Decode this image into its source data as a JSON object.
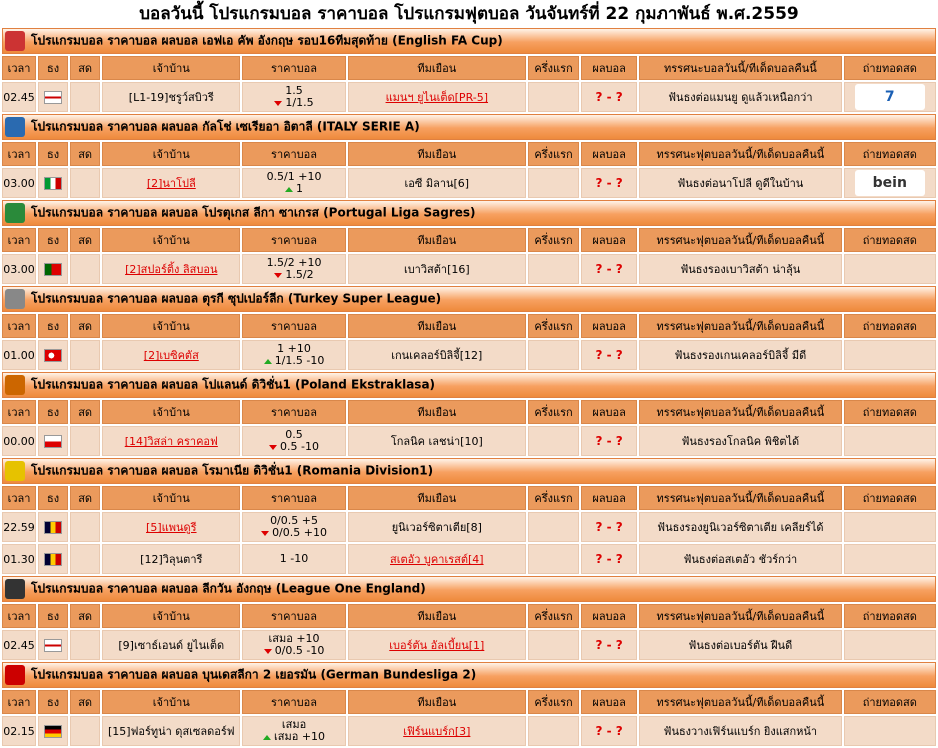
{
  "title": "บอลวันนี้ โปรแกรมบอล ราคาบอล โปรแกรมฟุตบอล วันจันทร์ที่ 22 กุมภาพันธ์ พ.ศ.2559",
  "sections": [
    {
      "league": "โปรแกรมบอล ราคาบอล ผลบอล เอฟเอ คัพ อังกฤษ รอบ16ทีมสุดท้าย (English FA Cup)",
      "columns": [
        "เวลา",
        "ธง",
        "สด",
        "เจ้าบ้าน",
        "ราคาบอล",
        "ทีมเยือน",
        "ครึ่งแรก",
        "ผลบอล",
        "ทรรศนะบอลวันนี้/ทีเด็ดบอลคืนนี้",
        "ถ่ายทอดสด"
      ],
      "rows": [
        {
          "time": "02.45",
          "home": "[L1-19]ชรูว์สบิวรี",
          "odds": [
            "1.5",
            "1/1.5"
          ],
          "odds_arrow": "down",
          "away": "แมนฯ ยูไนเต็ด[PR-5]",
          "fav": "away",
          "result": "? - ?",
          "tip": "ฟันธงต่อแมนยู ดูแล้วเหนือกว่า",
          "tv": "7"
        }
      ]
    },
    {
      "league": "โปรแกรมบอล ราคาบอล ผลบอล กัลโช่ เซเรียอา อิตาลี (ITALY SERIE A)",
      "columns": [
        "เวลา",
        "ธง",
        "สด",
        "เจ้าบ้าน",
        "ราคาบอล",
        "ทีมเยือน",
        "ครึ่งแรก",
        "ผลบอล",
        "ทรรศนะฟุตบอลวันนี้/ทีเด็ดบอลคืนนี้",
        "ถ่ายทอดสด"
      ],
      "rows": [
        {
          "time": "03.00",
          "home": "[2]นาโปลี",
          "odds": [
            "0.5/1 +10",
            "1"
          ],
          "odds_arrow": "up",
          "away": "เอซี มิลาน[6]",
          "fav": "home",
          "result": "? - ?",
          "tip": "ฟันธงต่อนาโปลี ดูดีในบ้าน",
          "tv": "bein"
        }
      ]
    },
    {
      "league": "โปรแกรมบอล ราคาบอล ผลบอล โปรตุเกส ลีกา ซาเกรส (Portugal Liga Sagres)",
      "columns": [
        "เวลา",
        "ธง",
        "สด",
        "เจ้าบ้าน",
        "ราคาบอล",
        "ทีมเยือน",
        "ครึ่งแรก",
        "ผลบอล",
        "ทรรศนะฟุตบอลวันนี้/ทีเด็ดบอลคืนนี้",
        "ถ่ายทอดสด"
      ],
      "rows": [
        {
          "time": "03.00",
          "home": "[2]สปอร์ติ้ง ลิสบอน",
          "odds": [
            "1.5/2 +10",
            "1.5/2"
          ],
          "odds_arrow": "down",
          "away": "เบาวิสต้า[16]",
          "fav": "home",
          "result": "? - ?",
          "tip": "ฟันธงรองเบาวิสต้า น่าลุ้น"
        }
      ]
    },
    {
      "league": "โปรแกรมบอล ราคาบอล ผลบอล ตุรกี ซุปเปอร์ลีก (Turkey Super League)",
      "columns": [
        "เวลา",
        "ธง",
        "สด",
        "เจ้าบ้าน",
        "ราคาบอล",
        "ทีมเยือน",
        "ครึ่งแรก",
        "ผลบอล",
        "ทรรศนะฟุตบอลวันนี้/ทีเด็ดบอลคืนนี้",
        "ถ่ายทอดสด"
      ],
      "rows": [
        {
          "time": "01.00",
          "home": "[2]เบซิคตัส",
          "odds": [
            "1 +10",
            "1/1.5 -10"
          ],
          "odds_arrow": "up",
          "away": "เกนเคลอร์บิลิจี้[12]",
          "fav": "home",
          "result": "? - ?",
          "tip": "ฟันธงรองเกนเคลอร์บิลิจี้ มีดี"
        }
      ]
    },
    {
      "league": "โปรแกรมบอล ราคาบอล ผลบอล โปแลนด์ ดิวิชั่น1 (Poland Ekstraklasa)",
      "columns": [
        "เวลา",
        "ธง",
        "สด",
        "เจ้าบ้าน",
        "ราคาบอล",
        "ทีมเยือน",
        "ครึ่งแรก",
        "ผลบอล",
        "ทรรศนะฟุตบอลวันนี้/ทีเด็ดบอลคืนนี้",
        "ถ่ายทอดสด"
      ],
      "rows": [
        {
          "time": "00.00",
          "home": "[14]วิสล่า คราคอฟ",
          "odds": [
            "0.5",
            "0.5 -10"
          ],
          "odds_arrow": "down",
          "away": "โกลนิค เลชน่า[10]",
          "fav": "home",
          "result": "? - ?",
          "tip": "ฟันธงรองโกลนิค พิชิตได้"
        }
      ]
    },
    {
      "league": "โปรแกรมบอล ราคาบอล ผลบอล โรมาเนีย ดิวิชั่น1 (Romania Division1)",
      "columns": [
        "เวลา",
        "ธง",
        "สด",
        "เจ้าบ้าน",
        "ราคาบอล",
        "ทีมเยือน",
        "ครึ่งแรก",
        "ผลบอล",
        "ทรรศนะฟุตบอลวันนี้/ทีเด็ดบอลคืนนี้",
        "ถ่ายทอดสด"
      ],
      "rows": [
        {
          "time": "22.59",
          "home": "[5]แพนดูรี",
          "odds": [
            "0/0.5 +5",
            "0/0.5 +10"
          ],
          "odds_arrow": "down",
          "away": "ยูนิเวอร์ซิตาเตีย[8]",
          "fav": "home",
          "result": "? - ?",
          "tip": "ฟันธงรองยูนิเวอร์ซิตาเตีย เคลียร์ได้"
        },
        {
          "time": "01.30",
          "home": "[12]วิลุนตารี",
          "odds": [
            "1 -10"
          ],
          "away": "สเตอัว บูคาเรสต์[4]",
          "fav": "away",
          "result": "? - ?",
          "tip": "ฟันธงต่อสเตอัว ชัวร์กว่า"
        }
      ]
    },
    {
      "league": "โปรแกรมบอล ราคาบอล ผลบอล ลีกวัน อังกฤษ (League One England)",
      "columns": [
        "เวลา",
        "ธง",
        "สด",
        "เจ้าบ้าน",
        "ราคาบอล",
        "ทีมเยือน",
        "ครึ่งแรก",
        "ผลบอล",
        "ทรรศนะฟุตบอลวันนี้/ทีเด็ดบอลคืนนี้",
        "ถ่ายทอดสด"
      ],
      "rows": [
        {
          "time": "02.45",
          "home": "[9]เซาธ์เอนด์ ยูไนเต็ด",
          "odds": [
            "เสมอ +10",
            "0/0.5 -10"
          ],
          "odds_arrow": "down",
          "away": "เบอร์ตัน อัลเบี้ยน[1]",
          "fav": "away",
          "result": "? - ?",
          "tip": "ฟันธงต่อเบอร์ตัน ฝืนดี"
        }
      ]
    },
    {
      "league": "โปรแกรมบอล ราคาบอล ผลบอล บุนเดสลีกา 2 เยอรมัน (German Bundesliga 2)",
      "columns": [
        "เวลา",
        "ธง",
        "สด",
        "เจ้าบ้าน",
        "ราคาบอล",
        "ทีมเยือน",
        "ครึ่งแรก",
        "ผลบอล",
        "ทรรศนะฟุตบอลวันนี้/ทีเด็ดบอลคืนนี้",
        "ถ่ายทอดสด"
      ],
      "rows": [
        {
          "time": "02.15",
          "home": "[15]ฟอร์ทูน่า ดุสเซลดอร์ฟ",
          "odds": [
            "เสมอ",
            "เสมอ +10"
          ],
          "odds_arrow": "up",
          "away": "เฟิร์นแบร์ก[3]",
          "fav": "away",
          "result": "? - ?",
          "tip": "ฟันธงวางเฟิร์นแบร์ก ยิงแสกหน้า"
        }
      ]
    }
  ]
}
